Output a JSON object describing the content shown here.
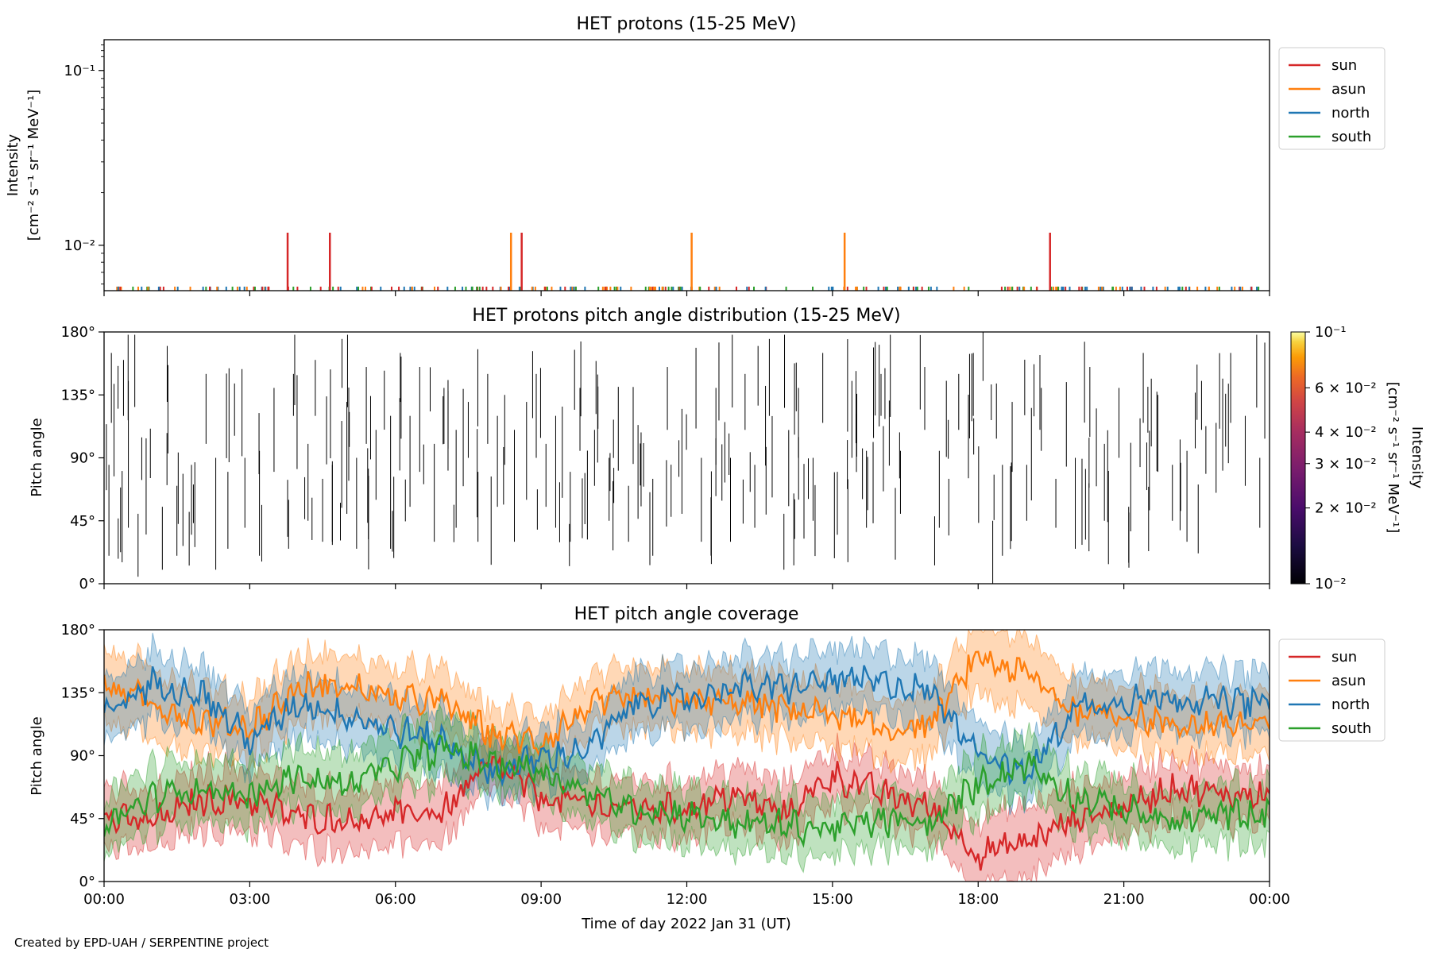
{
  "chart_data": [
    {
      "type": "line",
      "title": "HET protons (15-25 MeV)",
      "ylabel_line1": "Intensity",
      "ylabel_line2": "[cm⁻² s⁻¹ sr⁻¹ MeV⁻¹]",
      "yscale": "log",
      "ylim": [
        0.0055,
        0.15
      ],
      "yticks": [
        {
          "value": 0.1,
          "label": "10⁻¹"
        },
        {
          "value": 0.01,
          "label": "10⁻²"
        }
      ],
      "legend": "top-right",
      "series": [
        {
          "name": "sun",
          "color": "#d62728"
        },
        {
          "name": "asun",
          "color": "#ff7f0e"
        },
        {
          "name": "north",
          "color": "#1f77b4"
        },
        {
          "name": "south",
          "color": "#2ca02c"
        }
      ],
      "peaks": [
        {
          "series": "sun",
          "time_h": 3.78,
          "value": 0.0118
        },
        {
          "series": "sun",
          "time_h": 4.65,
          "value": 0.0118
        },
        {
          "series": "asun",
          "time_h": 8.38,
          "value": 0.0118
        },
        {
          "series": "sun",
          "time_h": 8.6,
          "value": 0.0118
        },
        {
          "series": "asun",
          "time_h": 12.1,
          "value": 0.0118
        },
        {
          "series": "asun",
          "time_h": 15.25,
          "value": 0.0118
        },
        {
          "series": "sun",
          "time_h": 19.48,
          "value": 0.0118
        }
      ],
      "background_value": 0.0058
    },
    {
      "type": "heatmap",
      "title": "HET protons pitch angle distribution (15-25 MeV)",
      "ylabel": "Pitch angle",
      "ylim": [
        0,
        180
      ],
      "yticks": [
        "0°",
        "45°",
        "90°",
        "135°",
        "180°"
      ],
      "colorbar": {
        "label": "Intensity",
        "label_units": "[cm⁻² s⁻¹ sr⁻¹ MeV⁻¹]",
        "scale": "log",
        "range": [
          0.01,
          0.1
        ],
        "ticks": [
          {
            "value": 0.1,
            "label": "10⁻¹"
          },
          {
            "value": 0.06,
            "label": "6 × 10⁻²"
          },
          {
            "value": 0.04,
            "label": "4 × 10⁻²"
          },
          {
            "value": 0.03,
            "label": "3 × 10⁻²"
          },
          {
            "value": 0.02,
            "label": "2 × 10⁻²"
          },
          {
            "value": 0.01,
            "label": "10⁻²"
          }
        ],
        "colormap": "inferno"
      },
      "segments": [
        [
          0.1,
          20,
          85
        ],
        [
          0.15,
          115,
          165
        ],
        [
          0.4,
          120,
          160
        ],
        [
          0.5,
          40,
          145
        ],
        [
          0.7,
          5,
          50
        ],
        [
          1.2,
          10,
          55
        ],
        [
          1.3,
          130,
          170
        ],
        [
          1.5,
          20,
          70
        ],
        [
          1.8,
          35,
          85
        ],
        [
          2.1,
          100,
          150
        ],
        [
          2.3,
          10,
          90
        ],
        [
          2.55,
          25,
          80
        ],
        [
          2.9,
          40,
          90
        ],
        [
          3.2,
          20,
          95
        ],
        [
          3.5,
          80,
          140
        ],
        [
          3.8,
          25,
          60
        ],
        [
          3.9,
          120,
          150
        ],
        [
          4.2,
          45,
          100
        ],
        [
          4.35,
          120,
          160
        ],
        [
          4.5,
          30,
          75
        ],
        [
          4.7,
          30,
          85
        ],
        [
          4.9,
          140,
          175
        ],
        [
          5.0,
          50,
          130
        ],
        [
          5.2,
          25,
          90
        ],
        [
          5.4,
          100,
          155
        ],
        [
          5.6,
          60,
          110
        ],
        [
          5.9,
          25,
          120
        ],
        [
          6.1,
          130,
          165
        ],
        [
          6.3,
          55,
          120
        ],
        [
          6.5,
          80,
          155
        ],
        [
          6.8,
          30,
          100
        ],
        [
          7.0,
          100,
          140
        ],
        [
          7.25,
          40,
          110
        ],
        [
          7.5,
          90,
          130
        ],
        [
          7.7,
          30,
          80
        ],
        [
          7.9,
          100,
          150
        ],
        [
          8.1,
          55,
          120
        ],
        [
          8.25,
          85,
          135
        ],
        [
          8.45,
          30,
          110
        ],
        [
          8.7,
          60,
          130
        ],
        [
          8.9,
          90,
          150
        ],
        [
          9.1,
          55,
          100
        ],
        [
          9.3,
          40,
          120
        ],
        [
          9.6,
          30,
          80
        ],
        [
          9.8,
          95,
          140
        ],
        [
          10.1,
          70,
          110
        ],
        [
          10.4,
          45,
          90
        ],
        [
          10.8,
          30,
          70
        ],
        [
          11.3,
          20,
          75
        ],
        [
          11.6,
          110,
          155
        ],
        [
          11.9,
          50,
          125
        ],
        [
          12.3,
          30,
          90
        ],
        [
          12.6,
          85,
          140
        ],
        [
          12.9,
          30,
          90
        ],
        [
          13.2,
          110,
          150
        ],
        [
          13.4,
          40,
          85
        ],
        [
          13.7,
          120,
          175
        ],
        [
          14.0,
          10,
          50
        ],
        [
          14.3,
          90,
          140
        ],
        [
          14.6,
          45,
          90
        ],
        [
          14.8,
          115,
          165
        ],
        [
          15.1,
          35,
          80
        ],
        [
          15.4,
          90,
          145
        ],
        [
          15.7,
          40,
          95
        ],
        [
          16.0,
          120,
          150
        ],
        [
          16.4,
          50,
          95
        ],
        [
          16.9,
          110,
          155
        ],
        [
          17.2,
          40,
          95
        ],
        [
          17.6,
          110,
          150
        ],
        [
          17.9,
          120,
          165
        ],
        [
          18.1,
          145,
          180
        ],
        [
          18.3,
          0,
          45
        ],
        [
          18.5,
          20,
          85
        ],
        [
          18.7,
          80,
          130
        ],
        [
          19.0,
          45,
          85
        ],
        [
          19.3,
          95,
          140
        ],
        [
          19.6,
          40,
          75
        ],
        [
          20.0,
          25,
          90
        ],
        [
          20.3,
          105,
          155
        ],
        [
          20.6,
          45,
          100
        ],
        [
          20.9,
          90,
          140
        ],
        [
          21.1,
          15,
          55
        ],
        [
          21.4,
          115,
          165
        ],
        [
          21.7,
          80,
          135
        ],
        [
          22.0,
          45,
          85
        ],
        [
          22.3,
          30,
          95
        ],
        [
          22.6,
          110,
          145
        ],
        [
          22.9,
          65,
          115
        ],
        [
          23.2,
          115,
          165
        ],
        [
          23.5,
          70,
          120
        ],
        [
          23.8,
          40,
          90
        ]
      ]
    },
    {
      "type": "line",
      "title": "HET pitch angle coverage",
      "ylabel": "Pitch angle",
      "xlabel": "Time of day 2022 Jan 31 (UT)",
      "ylim": [
        0,
        180
      ],
      "xlim_h": [
        0,
        24
      ],
      "xticks": [
        "00:00",
        "03:00",
        "06:00",
        "09:00",
        "12:00",
        "15:00",
        "18:00",
        "21:00",
        "00:00"
      ],
      "yticks": [
        "0°",
        "45°",
        "90°",
        "135°",
        "180°"
      ],
      "legend": "top-right",
      "note": "lines show mean pitch angle, shaded bands show min–max coverage",
      "series": [
        {
          "name": "sun",
          "color": "#d62728",
          "time_h": [
            0,
            1,
            2,
            3,
            4,
            5,
            6,
            7,
            8,
            9,
            10,
            11,
            12,
            13,
            14,
            15,
            16,
            17,
            18,
            19,
            20,
            21,
            22,
            23,
            24
          ],
          "mean": [
            45,
            42,
            58,
            58,
            46,
            44,
            48,
            50,
            85,
            60,
            55,
            52,
            52,
            62,
            48,
            76,
            63,
            53,
            20,
            28,
            45,
            53,
            68,
            62,
            62
          ],
          "spread": [
            22,
            20,
            22,
            22,
            22,
            22,
            22,
            22,
            18,
            20,
            20,
            20,
            20,
            20,
            22,
            18,
            20,
            20,
            25,
            25,
            22,
            22,
            20,
            20,
            20
          ]
        },
        {
          "name": "asun",
          "color": "#ff7f0e",
          "time_h": [
            0,
            1,
            2,
            3,
            4,
            5,
            6,
            7,
            8,
            9,
            10,
            11,
            12,
            13,
            14,
            15,
            16,
            17,
            18,
            19,
            20,
            21,
            22,
            23,
            24
          ],
          "mean": [
            140,
            128,
            115,
            110,
            138,
            140,
            130,
            128,
            105,
            100,
            125,
            130,
            128,
            128,
            124,
            120,
            108,
            112,
            160,
            148,
            122,
            120,
            112,
            112,
            112
          ],
          "spread": [
            25,
            25,
            22,
            22,
            22,
            22,
            22,
            22,
            18,
            20,
            20,
            22,
            22,
            22,
            22,
            22,
            22,
            22,
            25,
            25,
            22,
            22,
            22,
            22,
            22
          ]
        },
        {
          "name": "north",
          "color": "#1f77b4",
          "time_h": [
            0,
            1,
            2,
            3,
            4,
            5,
            6,
            7,
            8,
            9,
            10,
            11,
            12,
            13,
            14,
            15,
            16,
            17,
            18,
            19,
            20,
            21,
            22,
            23,
            24
          ],
          "mean": [
            120,
            142,
            135,
            100,
            128,
            120,
            108,
            100,
            78,
            88,
            95,
            130,
            130,
            140,
            138,
            144,
            142,
            136,
            95,
            75,
            125,
            130,
            132,
            128,
            128
          ],
          "spread": [
            22,
            22,
            22,
            22,
            22,
            22,
            22,
            22,
            18,
            20,
            20,
            22,
            22,
            22,
            22,
            22,
            22,
            22,
            22,
            20,
            22,
            22,
            22,
            22,
            22
          ]
        },
        {
          "name": "south",
          "color": "#2ca02c",
          "time_h": [
            0,
            1,
            2,
            3,
            4,
            5,
            6,
            7,
            8,
            9,
            10,
            11,
            12,
            13,
            14,
            15,
            16,
            17,
            18,
            19,
            20,
            21,
            22,
            23,
            24
          ],
          "mean": [
            40,
            60,
            68,
            60,
            76,
            68,
            84,
            95,
            85,
            80,
            62,
            52,
            48,
            42,
            40,
            38,
            44,
            40,
            70,
            85,
            60,
            52,
            42,
            48,
            48
          ],
          "spread": [
            20,
            22,
            22,
            22,
            22,
            22,
            22,
            22,
            18,
            20,
            20,
            20,
            20,
            20,
            20,
            20,
            20,
            20,
            22,
            20,
            20,
            20,
            20,
            20,
            20
          ]
        }
      ]
    }
  ],
  "footer": {
    "credit": "Created by EPD-UAH / SERPENTINE project"
  }
}
